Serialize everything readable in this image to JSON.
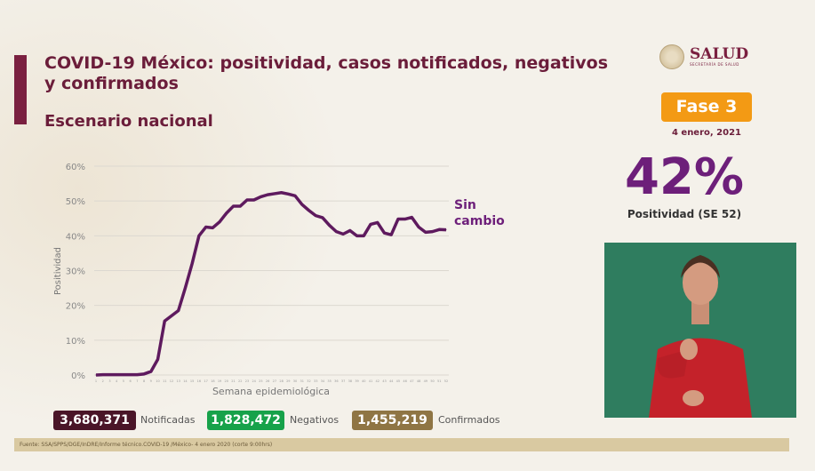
{
  "title": "COVID-19 México: positividad, casos notificados, negativos y confirmados",
  "subtitle": "Escenario nacional",
  "logo": {
    "name": "SALUD",
    "sub": "SECRETARÍA DE SALUD"
  },
  "phase": "Fase 3",
  "date": "4 enero, 2021",
  "positivity": {
    "value": "42%",
    "label": "Positividad (SE 52)"
  },
  "annotation": {
    "line1": "Sin",
    "line2": "cambio"
  },
  "counts": [
    {
      "value": "3,680,371",
      "label": "Notificadas",
      "color": "#4a1528"
    },
    {
      "value": "1,828,472",
      "label": "Negativos",
      "color": "#17a24a"
    },
    {
      "value": "1,455,219",
      "label": "Confirmados",
      "color": "#8f7544"
    }
  ],
  "footer": "Fuente: SSA/SPPS/DGE/InDRE/Informe técnico.COVID-19 /México- 4 enero 2020 (corte 9:00hrs)",
  "chart_data": {
    "type": "line",
    "title": "",
    "xlabel": "Semana epidemiológica",
    "ylabel": "Positividad",
    "ylim": [
      0,
      60
    ],
    "yticks": [
      "0%",
      "10%",
      "20%",
      "30%",
      "40%",
      "50%",
      "60%"
    ],
    "x": [
      1,
      2,
      3,
      4,
      5,
      6,
      7,
      8,
      9,
      10,
      11,
      12,
      13,
      14,
      15,
      16,
      17,
      18,
      19,
      20,
      21,
      22,
      23,
      24,
      25,
      26,
      27,
      28,
      29,
      30,
      31,
      32,
      33,
      34,
      35,
      36,
      37,
      38,
      39,
      40,
      41,
      42,
      43,
      44,
      45,
      46,
      47,
      48,
      49,
      50,
      51,
      52
    ],
    "series": [
      {
        "name": "Positividad",
        "color": "#5e1a5e",
        "values": [
          0,
          0.1,
          0.1,
          0.1,
          0.1,
          0.1,
          0.1,
          0.3,
          1,
          4.5,
          15.5,
          17,
          18.5,
          25,
          32,
          40,
          42.5,
          42.3,
          44,
          46.5,
          48.5,
          48.5,
          50.3,
          50.3,
          51.2,
          51.8,
          52.1,
          52.4,
          52,
          51.5,
          49,
          47.3,
          45.8,
          45.2,
          43,
          41.2,
          40.5,
          41.5,
          40,
          40,
          43.3,
          43.8,
          40.8,
          40.3,
          44.8,
          44.8,
          45.3,
          42.5,
          41,
          41.2,
          41.8,
          41.7
        ]
      }
    ],
    "grid": true
  }
}
